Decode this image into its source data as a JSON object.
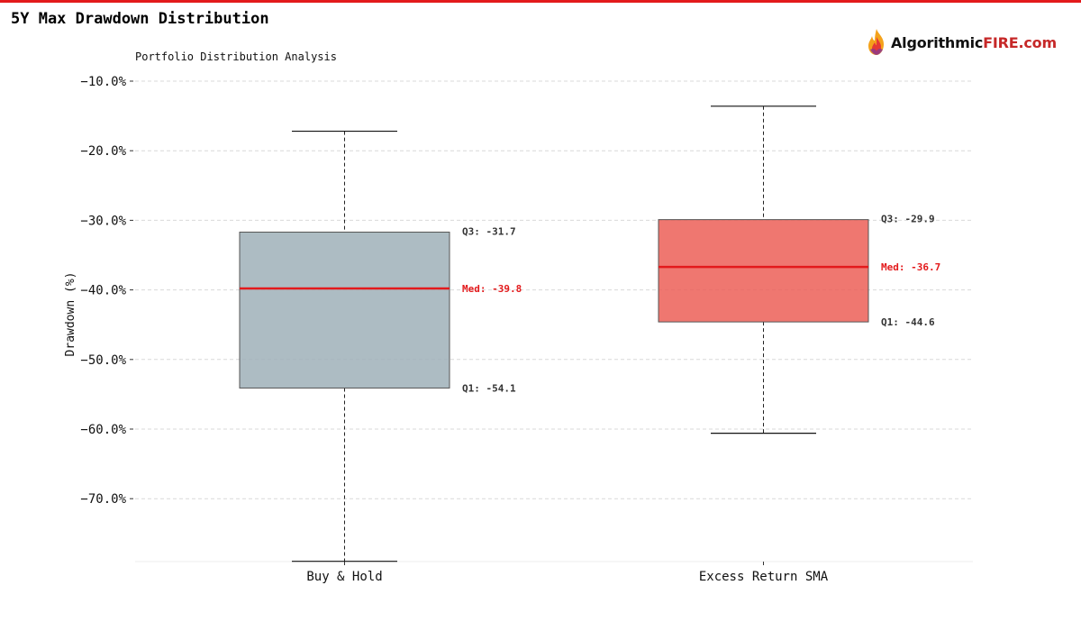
{
  "header": {
    "title": "5Y Max Drawdown Distribution",
    "accent_color": "#e31a1c"
  },
  "logo": {
    "icon": "flame-icon",
    "text_dark": "Algorithmic",
    "text_red": "FIRE.com"
  },
  "chart_data": {
    "type": "box",
    "subtitle": "Portfolio Distribution Analysis",
    "xlabel": "",
    "ylabel": "Drawdown (%)",
    "ylim": [
      -79,
      -10
    ],
    "yticks": [
      -10,
      -20,
      -30,
      -40,
      -50,
      -60,
      -70
    ],
    "ytick_labels": [
      "−10.0%",
      "−20.0%",
      "−30.0%",
      "−40.0%",
      "−50.0%",
      "−60.0%",
      "−70.0%"
    ],
    "grid": true,
    "categories": [
      "Buy & Hold",
      "Excess Return SMA"
    ],
    "boxes": [
      {
        "category": "Buy & Hold",
        "whisker_high": -17.2,
        "q3": -31.7,
        "median": -39.8,
        "q1": -54.1,
        "whisker_low": -79,
        "color": "#9fb0b8",
        "labels": {
          "q3": "Q3: -31.7",
          "median": "Med: -39.8",
          "q1": "Q1: -54.1"
        }
      },
      {
        "category": "Excess Return SMA",
        "whisker_high": -13.6,
        "q3": -29.9,
        "median": -36.7,
        "q1": -44.6,
        "whisker_low": -60.6,
        "color": "#ec5f57",
        "labels": {
          "q3": "Q3: -29.9",
          "median": "Med: -36.7",
          "q1": "Q1: -44.6"
        }
      }
    ],
    "median_color": "#e31a1c"
  }
}
